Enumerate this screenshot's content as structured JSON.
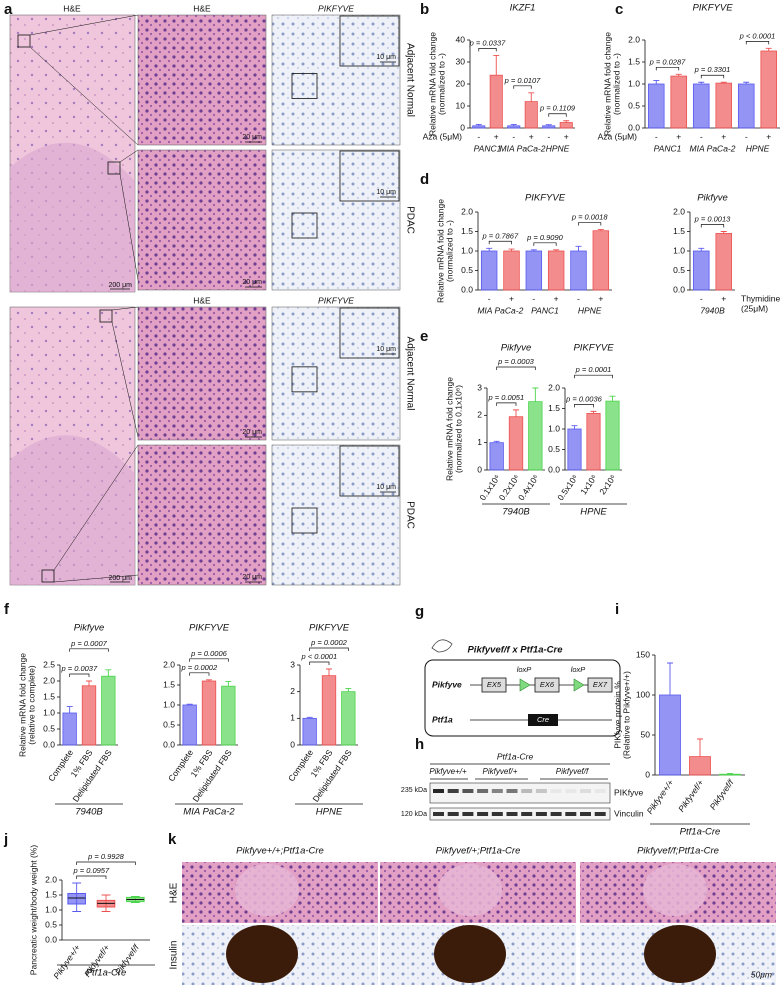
{
  "panel_labels": [
    "a",
    "b",
    "c",
    "d",
    "e",
    "f",
    "g",
    "h",
    "i",
    "j",
    "k"
  ],
  "panel_a": {
    "top_headers": [
      "H&E",
      "H&E",
      "PIKFYVE"
    ],
    "bottom_headers": [
      "H&E",
      "PIKFYVE"
    ],
    "row_labels": [
      "Adjacent Normal",
      "PDAC",
      "Adjacent Normal",
      "PDAC"
    ],
    "scale_bars": [
      "200 μm",
      "20 μm",
      "10 μm"
    ]
  },
  "panel_g": {
    "title": "Pikfyvef/f x Ptf1a-Cre",
    "gene1": "Pikfyve",
    "exons": [
      "EX5",
      "EX6",
      "EX7"
    ],
    "loxp": "loxP",
    "gene2": "Ptf1a",
    "cre": "Cre"
  },
  "panel_h": {
    "group": "Ptf1a-Cre",
    "lanes": [
      "Pikfyve+/+",
      "Pikfyvef/+",
      "Pikfyvef/f"
    ],
    "proteins": [
      "PIKfyve",
      "Vinculin"
    ],
    "markers": [
      "235 kDa",
      "120 kDa"
    ]
  },
  "panel_k": {
    "columns": [
      "Pikfyve+/+;Ptf1a-Cre",
      "Pikfyvef/+;Ptf1a-Cre",
      "Pikfyvef/f;Ptf1a-Cre"
    ],
    "rows": [
      "H&E",
      "Insulin"
    ],
    "scale_bar": "50μm"
  },
  "chart_data": [
    {
      "type": "bar",
      "title": "IKZF1",
      "ylabel": [
        "Relative mRNA fold change",
        "(normalized to -)"
      ],
      "categories": [
        "-",
        "+",
        "-",
        "+",
        "-",
        "+"
      ],
      "groups": [
        "PANC1",
        "MIA PaCa-2",
        "HPNE"
      ],
      "xprefix": "Aza (5μM)",
      "values": [
        1,
        24,
        1,
        12,
        1,
        2.5
      ],
      "errors": [
        0.6,
        9,
        0.6,
        4,
        0.5,
        0.8
      ],
      "colors": [
        "#5a5af0",
        "#ec5050",
        "#5a5af0",
        "#ec5050",
        "#5a5af0",
        "#ec5050"
      ],
      "ylim": [
        0,
        40
      ],
      "yticks": [
        0,
        10,
        20,
        30,
        40
      ],
      "annotations": [
        "p = 0.0337",
        "p = 0.0107",
        "p = 0.1109"
      ]
    },
    {
      "type": "bar",
      "title": "PIKFYVE",
      "ylabel": [
        "Relative mRNA fold change",
        "(normalized to -)"
      ],
      "categories": [
        "-",
        "+",
        "-",
        "+",
        "-",
        "+"
      ],
      "groups": [
        "PANC1",
        "MIA PaCa-2",
        "HPNE"
      ],
      "xprefix": "Aza (5μM)",
      "values": [
        1,
        1.18,
        1,
        1.02,
        1,
        1.75
      ],
      "errors": [
        0.08,
        0.04,
        0.04,
        0.02,
        0.04,
        0.06
      ],
      "colors": [
        "#5a5af0",
        "#ec5050",
        "#5a5af0",
        "#ec5050",
        "#5a5af0",
        "#ec5050"
      ],
      "ylim": [
        0,
        2
      ],
      "yticks": [
        {
          "value": 0,
          "label": "0.0"
        },
        0.5,
        {
          "value": 1,
          "label": "1.0"
        },
        1.5,
        {
          "value": 2,
          "label": "2.0"
        }
      ],
      "annotations": [
        "p = 0.0287",
        "p = 0.3301",
        "p < 0.0001"
      ]
    },
    {
      "type": "bar",
      "title": "PIKFYVE",
      "ylabel": [
        "Relative mRNA fold change",
        "(normalized to -)"
      ],
      "categories": [
        "-",
        "+",
        "-",
        "+",
        "-",
        "+"
      ],
      "groups": [
        "MIA PaCa-2",
        "PANC1",
        "HPNE"
      ],
      "values": [
        1,
        1,
        1,
        1,
        1,
        1.52
      ],
      "errors": [
        0.07,
        0.05,
        0.03,
        0.03,
        0.12,
        0.03
      ],
      "colors": [
        "#5a5af0",
        "#ec5050",
        "#5a5af0",
        "#ec5050",
        "#5a5af0",
        "#ec5050"
      ],
      "ylim": [
        0,
        2
      ],
      "yticks": [
        {
          "value": 0,
          "label": "0.0"
        },
        0.5,
        {
          "value": 1,
          "label": "1.0"
        },
        1.5,
        {
          "value": 2,
          "label": "2.0"
        }
      ],
      "annotations": [
        "p = 0.7867",
        "p = 0.9090",
        "p = 0.0018"
      ]
    },
    {
      "type": "bar",
      "title": "Pikfyve",
      "categories": [
        "-",
        "+"
      ],
      "groups": [
        "7940B"
      ],
      "xsuffix": [
        "Thymidine",
        "(25μM)"
      ],
      "values": [
        1,
        1.45
      ],
      "errors": [
        0.07,
        0.05
      ],
      "colors": [
        "#5a5af0",
        "#ec5050"
      ],
      "ylim": [
        0,
        2
      ],
      "yticks": [
        {
          "value": 0,
          "label": "0.0"
        },
        0.5,
        {
          "value": 1,
          "label": "1.0"
        },
        1.5,
        {
          "value": 2,
          "label": "2.0"
        }
      ],
      "annotations": [
        "p = 0.0013"
      ]
    },
    {
      "type": "bar",
      "title": "Pikfyve",
      "ylabel": [
        "Relative mRNA fold change",
        "(normalized to 0.1x10⁶)"
      ],
      "categories": [
        "0.1x10⁶",
        "0.2x10⁶",
        "0.4x10⁶"
      ],
      "xlabel": "7940B",
      "values": [
        1,
        1.95,
        2.5
      ],
      "errors": [
        0.05,
        0.25,
        0.5
      ],
      "colors": [
        "#5a5af0",
        "#ec5050",
        "#4cd44c"
      ],
      "ylim": [
        0,
        3
      ],
      "yticks": [
        0,
        1,
        2,
        3
      ],
      "annotations": [
        "p = 0.0051",
        "p = 0.0003"
      ]
    },
    {
      "type": "bar",
      "title": "PIKFYVE",
      "categories": [
        "0.5x10⁶",
        "1x10⁶",
        "2x10⁶"
      ],
      "xlabel": "HPNE",
      "values": [
        1,
        1.38,
        1.68
      ],
      "errors": [
        0.08,
        0.05,
        0.12
      ],
      "colors": [
        "#5a5af0",
        "#ec5050",
        "#4cd44c"
      ],
      "ylim": [
        0,
        2
      ],
      "yticks": [
        {
          "value": 0,
          "label": "0.0"
        },
        0.5,
        {
          "value": 1,
          "label": "1.0"
        },
        1.5,
        {
          "value": 2,
          "label": "2.0"
        }
      ],
      "annotations": [
        "p = 0.0036",
        "p = 0.0001"
      ]
    },
    {
      "type": "bar",
      "title": "Pikfyve",
      "ylabel": [
        "Relative mRNA fold change",
        "(relative to complete)"
      ],
      "categories": [
        "Complete",
        "1% FBS",
        "Delipidated FBS"
      ],
      "xlabel": "7940B",
      "values": [
        1,
        1.85,
        2.15
      ],
      "errors": [
        0.2,
        0.15,
        0.2
      ],
      "colors": [
        "#5a5af0",
        "#ec5050",
        "#4cd44c"
      ],
      "ylim": [
        0,
        2.5
      ],
      "yticks": [
        {
          "value": 0,
          "label": "0.0"
        },
        0.5,
        {
          "value": 1,
          "label": "1.0"
        },
        1.5,
        {
          "value": 2,
          "label": "2.0"
        },
        2.5
      ],
      "annotations": [
        "p = 0.0037",
        "p = 0.0007"
      ]
    },
    {
      "type": "bar",
      "title": "PIKFYVE",
      "categories": [
        "Complete",
        "1% FBS",
        "Delipidated FBS"
      ],
      "xlabel": "MIA PaCa-2",
      "values": [
        1,
        1.6,
        1.47
      ],
      "errors": [
        0.02,
        0.03,
        0.12
      ],
      "colors": [
        "#5a5af0",
        "#ec5050",
        "#4cd44c"
      ],
      "ylim": [
        0,
        2
      ],
      "yticks": [
        {
          "value": 0,
          "label": "0.0"
        },
        0.5,
        {
          "value": 1,
          "label": "1.0"
        },
        1.5,
        {
          "value": 2,
          "label": "2.0"
        }
      ],
      "annotations": [
        "p = 0.0002",
        "p = 0.0006"
      ]
    },
    {
      "type": "bar",
      "title": "PIKFYVE",
      "categories": [
        "Complete",
        "1% FBS",
        "Delipidated FBS"
      ],
      "xlabel": "HPNE",
      "values": [
        1,
        2.6,
        2
      ],
      "errors": [
        0.04,
        0.25,
        0.12
      ],
      "colors": [
        "#5a5af0",
        "#ec5050",
        "#4cd44c"
      ],
      "ylim": [
        0,
        3
      ],
      "yticks": [
        0,
        1,
        2,
        3
      ],
      "annotations": [
        "p < 0.0001",
        "p = 0.0002"
      ]
    },
    {
      "type": "bar",
      "ylabel": [
        "PIKfyve protein %",
        "(Relative to Pikfyve+/+)"
      ],
      "categories": [
        "Pikfyve+/+",
        "Pikfyvef/+",
        "Pikfyvef/f"
      ],
      "xlabel": "Ptf1a-Cre",
      "values": [
        100,
        23,
        1
      ],
      "errors": [
        40,
        22,
        1
      ],
      "colors": [
        "#5a5af0",
        "#ec5050",
        "#4cd44c"
      ],
      "ylim": [
        0,
        150
      ],
      "yticks": [
        0,
        50,
        100,
        150
      ]
    },
    {
      "type": "box",
      "ylabel": [
        "Pancreatic weight/body weight (%)"
      ],
      "categories": [
        "Pikfyve+/+",
        "Pikfyvef/+",
        "Pikfyvef/f"
      ],
      "xlabel": "Ptf1a-Cre",
      "boxes": [
        {
          "min": 0.95,
          "q1": 1.2,
          "median": 1.4,
          "q3": 1.55,
          "max": 1.9
        },
        {
          "min": 0.95,
          "q1": 1.1,
          "median": 1.22,
          "q3": 1.32,
          "max": 1.5
        },
        {
          "min": 1.25,
          "q1": 1.28,
          "median": 1.35,
          "q3": 1.42,
          "max": 1.45
        }
      ],
      "colors": [
        "#5a5af0",
        "#ec5050",
        "#4cd44c"
      ],
      "ylim": [
        0,
        2
      ],
      "yticks": [
        {
          "value": 0,
          "label": "0.0"
        },
        0.5,
        {
          "value": 1,
          "label": "1.0"
        },
        1.5,
        {
          "value": 2,
          "label": "2.0"
        }
      ],
      "annotations": [
        "p = 0.0957",
        "p = 0.9928"
      ]
    }
  ]
}
